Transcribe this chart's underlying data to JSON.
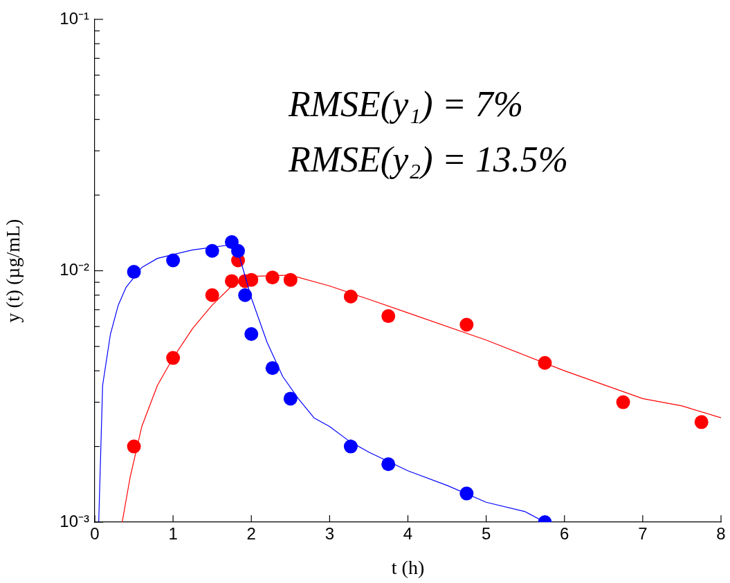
{
  "chart_data": {
    "type": "scatter",
    "xlabel": "t (h)",
    "ylabel": "y (t) (µg/mL)",
    "log": "y",
    "grid": false,
    "legend": false,
    "marker": "circle",
    "xlim": [
      0,
      8
    ],
    "xticks": [
      0,
      1,
      2,
      3,
      4,
      5,
      6,
      7,
      8
    ],
    "ylim": [
      0.001,
      0.1
    ],
    "yticks": [
      {
        "value": 0.001,
        "label": "10⁻³"
      },
      {
        "value": 0.002,
        "label": null
      },
      {
        "value": 0.003,
        "label": null
      },
      {
        "value": 0.004,
        "label": null
      },
      {
        "value": 0.005,
        "label": null
      },
      {
        "value": 0.006,
        "label": null
      },
      {
        "value": 0.007,
        "label": null
      },
      {
        "value": 0.008,
        "label": null
      },
      {
        "value": 0.009,
        "label": null
      },
      {
        "value": 0.01,
        "label": "10⁻²"
      },
      {
        "value": 0.02,
        "label": null
      },
      {
        "value": 0.03,
        "label": null
      },
      {
        "value": 0.04,
        "label": null
      },
      {
        "value": 0.05,
        "label": null
      },
      {
        "value": 0.06,
        "label": null
      },
      {
        "value": 0.07,
        "label": null
      },
      {
        "value": 0.08,
        "label": null
      },
      {
        "value": 0.09,
        "label": null
      },
      {
        "value": 0.1,
        "label": "10⁻¹"
      }
    ],
    "annotations": [
      "RMSE(y₁) = 7%",
      "RMSE(y₂) = 13.5%"
    ],
    "series": [
      {
        "type": "line",
        "marker": "none",
        "color": "#0000ff",
        "x": [
          0.05,
          0.1,
          0.2,
          0.3,
          0.4,
          0.6,
          0.8,
          1.0,
          1.25,
          1.5,
          1.75,
          1.83,
          2.0,
          2.2,
          2.4,
          2.6,
          2.8,
          3.0,
          3.25,
          3.5,
          4.0,
          4.5,
          5.0,
          5.5,
          5.75
        ],
        "values": [
          0.001,
          0.0035,
          0.0056,
          0.0073,
          0.0086,
          0.0103,
          0.0112,
          0.0116,
          0.0121,
          0.0124,
          0.0127,
          0.0119,
          0.0078,
          0.0052,
          0.0038,
          0.0031,
          0.0026,
          0.0024,
          0.0021,
          0.0019,
          0.0016,
          0.0014,
          0.0012,
          0.0011,
          0.001
        ]
      },
      {
        "type": "line",
        "marker": "none",
        "color": "#ff0000",
        "x": [
          0.35,
          0.45,
          0.6,
          0.8,
          1.0,
          1.25,
          1.5,
          1.75,
          2.0,
          2.5,
          3.0,
          3.5,
          4.0,
          5.0,
          6.0,
          7.0,
          7.5,
          8.0
        ],
        "values": [
          0.001,
          0.0015,
          0.0024,
          0.0035,
          0.0045,
          0.0059,
          0.0073,
          0.0087,
          0.0095,
          0.0096,
          0.0087,
          0.0077,
          0.0068,
          0.0053,
          0.004,
          0.0031,
          0.0029,
          0.0026
        ]
      },
      {
        "color": "#0000ff",
        "x": [
          0.5,
          1.0,
          1.5,
          1.75,
          1.83,
          1.92,
          2.0,
          2.27,
          2.5,
          3.27,
          3.75,
          4.75,
          5.75
        ],
        "values": [
          0.0099,
          0.011,
          0.012,
          0.013,
          0.012,
          0.008,
          0.0056,
          0.0041,
          0.0031,
          0.002,
          0.0017,
          0.0013,
          0.001
        ]
      },
      {
        "color": "#ff0000",
        "x": [
          0.5,
          1.0,
          1.5,
          1.75,
          1.83,
          1.92,
          2.0,
          2.27,
          2.5,
          3.27,
          3.75,
          4.75,
          5.75,
          6.75,
          7.75
        ],
        "values": [
          0.002,
          0.0045,
          0.008,
          0.0091,
          0.011,
          0.0091,
          0.0092,
          0.0094,
          0.0092,
          0.0079,
          0.0066,
          0.0061,
          0.0043,
          0.003,
          0.0025
        ]
      }
    ]
  }
}
